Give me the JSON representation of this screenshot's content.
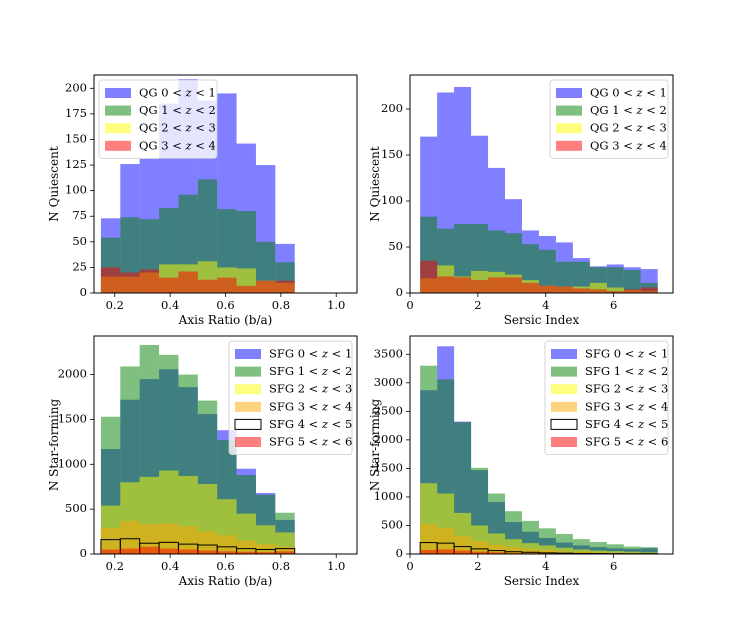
{
  "chart_data": [
    {
      "type": "bar",
      "panel": "top-left",
      "xlabel": "Axis Ratio (b/a)",
      "ylabel": "N Quiescent",
      "xlim": [
        0.125,
        1.075
      ],
      "ylim": [
        0,
        213
      ],
      "xticks": [
        0.2,
        0.4,
        0.6,
        0.8,
        1.0
      ],
      "xtick_labels": [
        "0.2",
        "0.4",
        "0.6",
        "0.8",
        "1.0"
      ],
      "yticks": [
        0,
        25,
        50,
        75,
        100,
        125,
        150,
        175,
        200
      ],
      "ytick_labels": [
        "0",
        "25",
        "50",
        "75",
        "100",
        "125",
        "150",
        "175",
        "200"
      ],
      "bin_edges": [
        0.15,
        0.22,
        0.29,
        0.36,
        0.43,
        0.5,
        0.57,
        0.64,
        0.71,
        0.78,
        0.85,
        0.92,
        0.99,
        1.06
      ],
      "legend_position": "top-left",
      "series": [
        {
          "name": "QG 0 < z < 1",
          "legend": "QG 0 < z < 1",
          "color": "#0000ff",
          "style": "filled",
          "values": [
            73,
            126,
            131,
            185,
            209,
            188,
            195,
            146,
            125,
            48,
            0,
            0,
            0
          ]
        },
        {
          "name": "QG 1 < z < 2",
          "legend": "QG 1 < z < 2",
          "color": "#008000",
          "style": "filled",
          "values": [
            54,
            74,
            72,
            83,
            96,
            111,
            82,
            80,
            50,
            30,
            0,
            0,
            0
          ]
        },
        {
          "name": "QG 2 < z < 3",
          "legend": "QG 2 < z < 3",
          "color": "#ffff00",
          "style": "filled",
          "values": [
            16,
            16,
            20,
            28,
            28,
            31,
            25,
            24,
            12,
            10,
            0,
            0,
            0
          ]
        },
        {
          "name": "QG 3 < z < 4",
          "legend": "QG 3 < z < 4",
          "color": "#ff0000",
          "style": "filled",
          "values": [
            25,
            20,
            23,
            15,
            21,
            13,
            15,
            7,
            12,
            12,
            0,
            0,
            0
          ]
        }
      ]
    },
    {
      "type": "bar",
      "panel": "top-right",
      "xlabel": "Sersic Index",
      "ylabel": "N Quiescent",
      "xlim": [
        0,
        7.75
      ],
      "ylim": [
        0,
        237
      ],
      "xticks": [
        0,
        2,
        4,
        6
      ],
      "xtick_labels": [
        "0",
        "2",
        "4",
        "6"
      ],
      "yticks": [
        0,
        50,
        100,
        150,
        200
      ],
      "ytick_labels": [
        "0",
        "50",
        "100",
        "150",
        "200"
      ],
      "bin_edges": [
        0.3,
        0.8,
        1.3,
        1.8,
        2.3,
        2.8,
        3.3,
        3.8,
        4.3,
        4.8,
        5.3,
        5.8,
        6.3,
        6.8,
        7.3
      ],
      "legend_position": "top-right",
      "series": [
        {
          "name": "QG 0 < z < 1",
          "legend": "QG 0 < z < 1",
          "color": "#0000ff",
          "style": "filled",
          "values": [
            170,
            218,
            224,
            171,
            136,
            102,
            68,
            62,
            55,
            38,
            29,
            31,
            28,
            26
          ]
        },
        {
          "name": "QG 1 < z < 2",
          "legend": "QG 1 < z < 2",
          "color": "#008000",
          "style": "filled",
          "values": [
            83,
            70,
            75,
            75,
            68,
            65,
            53,
            47,
            34,
            34,
            28,
            28,
            25,
            11
          ]
        },
        {
          "name": "QG 2 < z < 3",
          "legend": "QG 2 < z < 3",
          "color": "#ffff00",
          "style": "filled",
          "values": [
            16,
            30,
            18,
            24,
            23,
            20,
            14,
            8,
            7,
            7,
            11,
            6,
            3,
            2
          ]
        },
        {
          "name": "QG 3 < z < 4",
          "legend": "QG 3 < z < 4",
          "color": "#ff0000",
          "style": "filled",
          "values": [
            35,
            18,
            17,
            14,
            17,
            17,
            11,
            8,
            7,
            5,
            4,
            2,
            4,
            6
          ]
        }
      ]
    },
    {
      "type": "bar",
      "panel": "bottom-left",
      "xlabel": "Axis Ratio (b/a)",
      "ylabel": "N Star-forming",
      "xlim": [
        0.125,
        1.075
      ],
      "ylim": [
        0,
        2430
      ],
      "xticks": [
        0.2,
        0.4,
        0.6,
        0.8,
        1.0
      ],
      "xtick_labels": [
        "0.2",
        "0.4",
        "0.6",
        "0.8",
        "1.0"
      ],
      "yticks": [
        0,
        500,
        1000,
        1500,
        2000
      ],
      "ytick_labels": [
        "0",
        "500",
        "1000",
        "1500",
        "2000"
      ],
      "bin_edges": [
        0.15,
        0.22,
        0.29,
        0.36,
        0.43,
        0.5,
        0.57,
        0.64,
        0.71,
        0.78,
        0.85,
        0.92,
        0.99,
        1.06
      ],
      "legend_position": "top-right",
      "series": [
        {
          "name": "SFG 0 < z < 1",
          "legend": "SFG 0 < z < 1",
          "color": "#0000ff",
          "style": "filled",
          "values": [
            1170,
            1720,
            1950,
            2060,
            1860,
            1560,
            1380,
            950,
            680,
            380,
            0,
            0,
            0
          ]
        },
        {
          "name": "SFG 1 < z < 2",
          "legend": "SFG 1 < z < 2",
          "color": "#008000",
          "style": "filled",
          "values": [
            1530,
            2090,
            2330,
            2220,
            2000,
            1710,
            1270,
            880,
            660,
            460,
            0,
            0,
            0
          ]
        },
        {
          "name": "SFG 2 < z < 3",
          "legend": "SFG 2 < z < 3",
          "color": "#ffff00",
          "style": "filled",
          "values": [
            540,
            800,
            860,
            930,
            870,
            780,
            610,
            450,
            320,
            240,
            0,
            0,
            0
          ]
        },
        {
          "name": "SFG 3 < z < 4",
          "legend": "SFG 3 < z < 4",
          "color": "#ffa500",
          "style": "filled",
          "values": [
            290,
            370,
            330,
            340,
            310,
            250,
            210,
            150,
            110,
            80,
            0,
            0,
            0
          ]
        },
        {
          "name": "SFG 4 < z < 5",
          "legend": "SFG 4 < z < 5",
          "color": "#000000",
          "style": "outline",
          "values": [
            160,
            170,
            120,
            130,
            110,
            100,
            80,
            60,
            50,
            60,
            0,
            0,
            0
          ]
        },
        {
          "name": "SFG 5 < z < 6",
          "legend": "SFG 5 < z < 6",
          "color": "#ff0000",
          "style": "filled",
          "values": [
            50,
            60,
            80,
            60,
            50,
            40,
            30,
            25,
            20,
            30,
            0,
            0,
            0
          ]
        }
      ]
    },
    {
      "type": "bar",
      "panel": "bottom-right",
      "xlabel": "Sersic Index",
      "ylabel": "N Star-forming",
      "xlim": [
        0,
        7.75
      ],
      "ylim": [
        0,
        3820
      ],
      "xticks": [
        0,
        2,
        4,
        6
      ],
      "xtick_labels": [
        "0",
        "2",
        "4",
        "6"
      ],
      "yticks": [
        0,
        500,
        1000,
        1500,
        2000,
        2500,
        3000,
        3500
      ],
      "ytick_labels": [
        "0",
        "500",
        "1000",
        "1500",
        "2000",
        "2500",
        "3000",
        "3500"
      ],
      "bin_edges": [
        0.3,
        0.8,
        1.3,
        1.8,
        2.3,
        2.8,
        3.3,
        3.8,
        4.3,
        4.8,
        5.3,
        5.8,
        6.3,
        6.8,
        7.3
      ],
      "legend_position": "top-right",
      "series": [
        {
          "name": "SFG 0 < z < 1",
          "legend": "SFG 0 < z < 1",
          "color": "#0000ff",
          "style": "filled",
          "values": [
            2870,
            3640,
            2320,
            1470,
            910,
            560,
            390,
            280,
            200,
            150,
            120,
            100,
            90,
            100
          ]
        },
        {
          "name": "SFG 1 < z < 2",
          "legend": "SFG 1 < z < 2",
          "color": "#008000",
          "style": "filled",
          "values": [
            3300,
            3060,
            2310,
            1510,
            1060,
            750,
            580,
            450,
            350,
            260,
            210,
            170,
            130,
            120
          ]
        },
        {
          "name": "SFG 2 < z < 3",
          "legend": "SFG 2 < z < 3",
          "color": "#ffff00",
          "style": "filled",
          "values": [
            1240,
            1060,
            720,
            500,
            360,
            260,
            190,
            150,
            110,
            80,
            60,
            50,
            40,
            30
          ]
        },
        {
          "name": "SFG 3 < z < 4",
          "legend": "SFG 3 < z < 4",
          "color": "#ffa500",
          "style": "filled",
          "values": [
            520,
            460,
            320,
            230,
            160,
            120,
            90,
            70,
            50,
            40,
            30,
            25,
            20,
            15
          ]
        },
        {
          "name": "SFG 4 < z < 5",
          "legend": "SFG 4 < z < 5",
          "color": "#000000",
          "style": "outline",
          "values": [
            200,
            190,
            130,
            90,
            60,
            40,
            30,
            20,
            15,
            10,
            8,
            6,
            5,
            5
          ]
        },
        {
          "name": "SFG 5 < z < 6",
          "legend": "SFG 5 < z < 6",
          "color": "#ff0000",
          "style": "filled",
          "values": [
            70,
            80,
            60,
            40,
            30,
            20,
            15,
            10,
            8,
            6,
            5,
            4,
            3,
            2
          ]
        }
      ]
    }
  ]
}
